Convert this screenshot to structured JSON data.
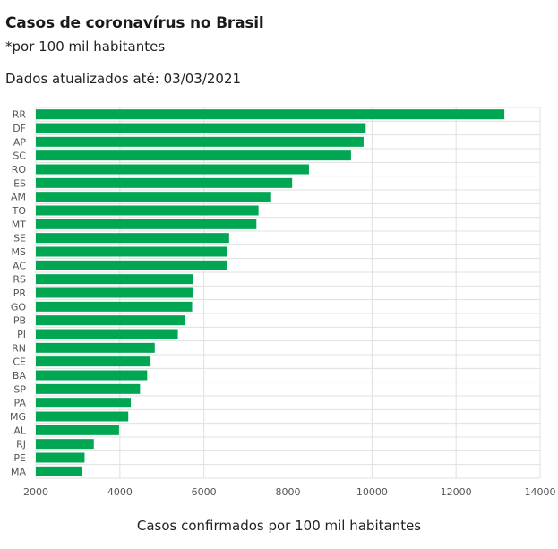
{
  "header": {
    "title": "Casos de coronavírus no Brasil",
    "subtitle": "*por 100 mil habitantes",
    "updated": "Dados atualizados até: 03/03/2021"
  },
  "colors": {
    "bar": "#00a651",
    "grid": "#e0e0e0",
    "axis_text": "#555555"
  },
  "chart_data": {
    "type": "bar",
    "orientation": "horizontal",
    "title": "Casos de coronavírus no Brasil",
    "subtitle": "*por 100 mil habitantes",
    "xlabel": "Casos confirmados por 100 mil habitantes",
    "ylabel": "",
    "xlim": [
      2000,
      14000
    ],
    "xticks": [
      2000,
      4000,
      6000,
      8000,
      10000,
      12000,
      14000
    ],
    "grid": true,
    "categories": [
      "RR",
      "DF",
      "AP",
      "SC",
      "RO",
      "ES",
      "AM",
      "TO",
      "MT",
      "SE",
      "MS",
      "AC",
      "RS",
      "PR",
      "GO",
      "PB",
      "PI",
      "RN",
      "CE",
      "BA",
      "SP",
      "PA",
      "MG",
      "AL",
      "RJ",
      "PE",
      "MA"
    ],
    "values": [
      13150,
      9850,
      9800,
      9500,
      8500,
      8100,
      7600,
      7300,
      7250,
      6600,
      6550,
      6550,
      5750,
      5750,
      5720,
      5560,
      5380,
      4830,
      4730,
      4650,
      4480,
      4260,
      4200,
      3980,
      3380,
      3160,
      3100
    ]
  }
}
